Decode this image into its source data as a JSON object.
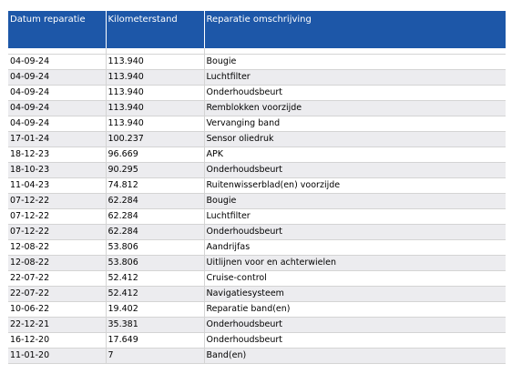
{
  "header": {
    "col_date": "Datum reparatie",
    "col_km": "Kilometerstand",
    "col_desc": "Reparatie omschrijving"
  },
  "rows": [
    {
      "date": "04-09-24",
      "km": "113.940",
      "desc": "Bougie"
    },
    {
      "date": "04-09-24",
      "km": "113.940",
      "desc": "Luchtfilter"
    },
    {
      "date": "04-09-24",
      "km": "113.940",
      "desc": "Onderhoudsbeurt"
    },
    {
      "date": "04-09-24",
      "km": "113.940",
      "desc": "Remblokken voorzijde"
    },
    {
      "date": "04-09-24",
      "km": "113.940",
      "desc": "Vervanging band"
    },
    {
      "date": "17-01-24",
      "km": "100.237",
      "desc": "Sensor oliedruk"
    },
    {
      "date": "18-12-23",
      "km": "96.669",
      "desc": "APK"
    },
    {
      "date": "18-10-23",
      "km": "90.295",
      "desc": "Onderhoudsbeurt"
    },
    {
      "date": "11-04-23",
      "km": "74.812",
      "desc": "Ruitenwisserblad(en) voorzijde"
    },
    {
      "date": "07-12-22",
      "km": "62.284",
      "desc": "Bougie"
    },
    {
      "date": "07-12-22",
      "km": "62.284",
      "desc": "Luchtfilter"
    },
    {
      "date": "07-12-22",
      "km": "62.284",
      "desc": "Onderhoudsbeurt"
    },
    {
      "date": "12-08-22",
      "km": "53.806",
      "desc": "Aandrijfas"
    },
    {
      "date": "12-08-22",
      "km": "53.806",
      "desc": "Uitlijnen voor en achterwielen"
    },
    {
      "date": "22-07-22",
      "km": "52.412",
      "desc": "Cruise-control"
    },
    {
      "date": "22-07-22",
      "km": "52.412",
      "desc": "Navigatiesysteem"
    },
    {
      "date": "10-06-22",
      "km": "19.402",
      "desc": "Reparatie band(en)"
    },
    {
      "date": "22-12-21",
      "km": "35.381",
      "desc": "Onderhoudsbeurt"
    },
    {
      "date": "16-12-20",
      "km": "17.649",
      "desc": "Onderhoudsbeurt"
    },
    {
      "date": "11-01-20",
      "km": "7",
      "desc": "Band(en)"
    }
  ],
  "colors": {
    "header_bg": "#1d57a8",
    "header_text": "#ffffff",
    "row_alt_bg": "#ececef",
    "grid_line": "#d4d4d4"
  }
}
